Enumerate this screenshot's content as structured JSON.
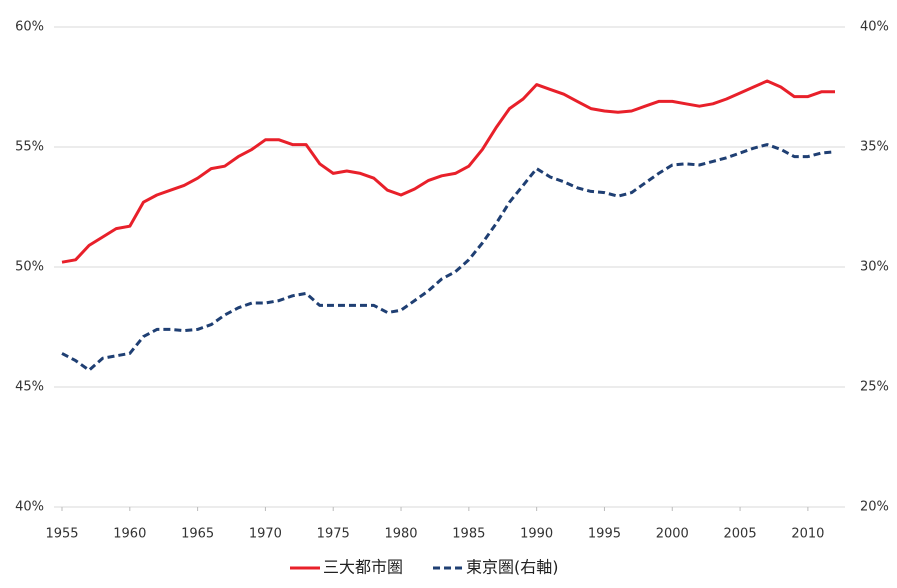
{
  "chart_data": {
    "type": "line",
    "x": [
      1955,
      1956,
      1957,
      1958,
      1959,
      1960,
      1961,
      1962,
      1963,
      1964,
      1965,
      1966,
      1967,
      1968,
      1969,
      1970,
      1971,
      1972,
      1973,
      1974,
      1975,
      1976,
      1977,
      1978,
      1979,
      1980,
      1981,
      1982,
      1983,
      1984,
      1985,
      1986,
      1987,
      1988,
      1989,
      1990,
      1991,
      1992,
      1993,
      1994,
      1995,
      1996,
      1997,
      1998,
      1999,
      2000,
      2001,
      2002,
      2003,
      2004,
      2005,
      2006,
      2007,
      2008,
      2009,
      2010,
      2011,
      2012
    ],
    "series": [
      {
        "name": "三大都市圏",
        "color": "#e8202a",
        "line_style": "solid",
        "axis": "y",
        "values": [
          50.2,
          50.3,
          50.9,
          51.25,
          51.6,
          51.7,
          52.7,
          53.0,
          53.2,
          53.4,
          53.7,
          54.1,
          54.2,
          54.6,
          54.9,
          55.3,
          55.3,
          55.1,
          55.1,
          54.3,
          53.9,
          54.0,
          53.9,
          53.7,
          53.2,
          53.0,
          53.25,
          53.6,
          53.8,
          53.9,
          54.2,
          54.9,
          55.8,
          56.6,
          57.0,
          57.6,
          57.4,
          57.2,
          56.9,
          56.6,
          56.5,
          56.45,
          56.5,
          56.7,
          56.9,
          56.9,
          56.8,
          56.7,
          56.8,
          57.0,
          57.25,
          57.5,
          57.75,
          57.5,
          57.1,
          57.1,
          57.3,
          57.3
        ]
      },
      {
        "name": "東京圏(右軸)",
        "color": "#1f3f73",
        "line_style": "dashed",
        "axis": "y2",
        "values": [
          26.4,
          26.1,
          25.7,
          26.2,
          26.3,
          26.4,
          27.1,
          27.4,
          27.4,
          27.35,
          27.4,
          27.6,
          28.0,
          28.3,
          28.5,
          28.5,
          28.6,
          28.8,
          28.9,
          28.4,
          28.4,
          28.4,
          28.4,
          28.4,
          28.1,
          28.2,
          28.6,
          29.0,
          29.5,
          29.8,
          30.3,
          31.0,
          31.8,
          32.7,
          33.4,
          34.1,
          33.75,
          33.55,
          33.3,
          33.15,
          33.1,
          32.95,
          33.1,
          33.5,
          33.9,
          34.25,
          34.3,
          34.25,
          34.4,
          34.55,
          34.75,
          34.95,
          35.1,
          34.9,
          34.6,
          34.6,
          34.75,
          34.8
        ]
      }
    ],
    "xlim": [
      1955,
      2012
    ],
    "xticks": [
      1955,
      1960,
      1965,
      1970,
      1975,
      1980,
      1985,
      1990,
      1995,
      2000,
      2005,
      2010
    ],
    "ylim": [
      40,
      60
    ],
    "yticks": [
      {
        "value": 40,
        "label": "40%"
      },
      {
        "value": 45,
        "label": "45%"
      },
      {
        "value": 50,
        "label": "50%"
      },
      {
        "value": 55,
        "label": "55%"
      },
      {
        "value": 60,
        "label": "60%"
      }
    ],
    "y2lim": [
      20,
      40
    ],
    "y2ticks": [
      {
        "value": 20,
        "label": "20%"
      },
      {
        "value": 25,
        "label": "25%"
      },
      {
        "value": 30,
        "label": "30%"
      },
      {
        "value": 35,
        "label": "35%"
      },
      {
        "value": 40,
        "label": "40%"
      }
    ],
    "grid": true,
    "legend": "bottom"
  }
}
